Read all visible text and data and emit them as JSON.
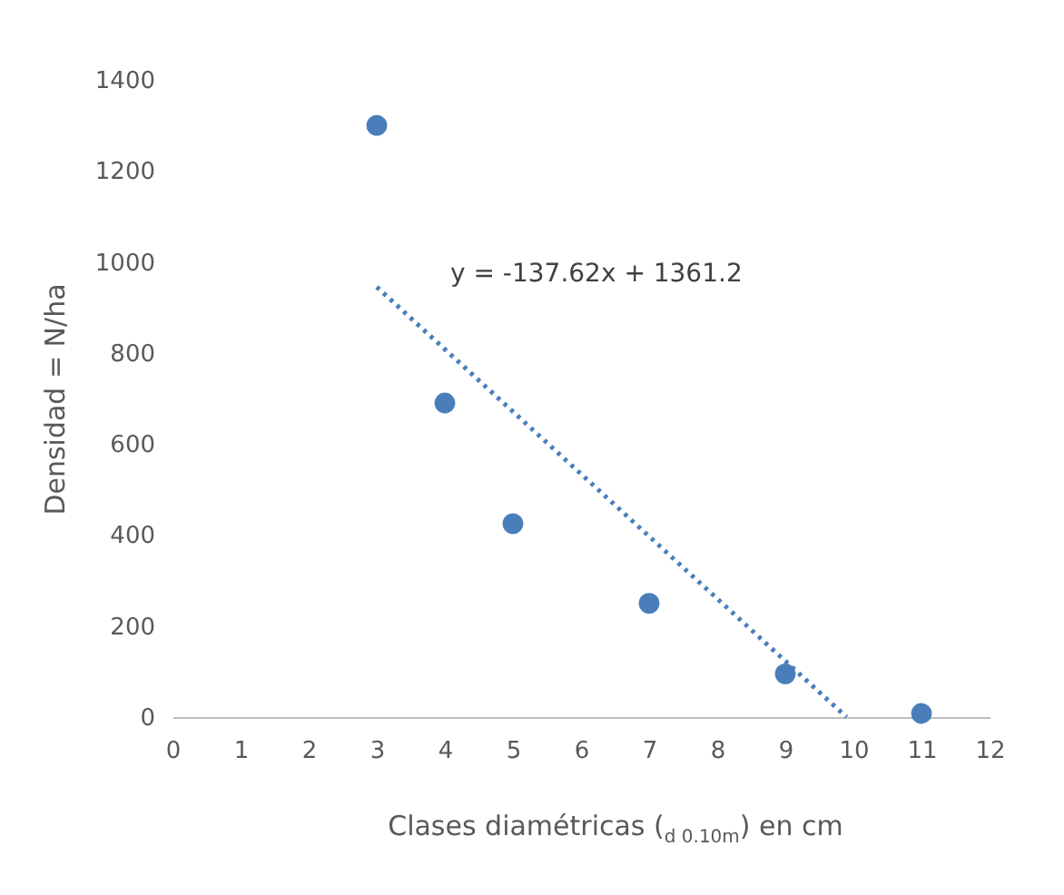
{
  "chart_data": {
    "type": "scatter",
    "xlabel": "Clases diamétricas ($_{d 0.10m}$) en cm",
    "ylabel": "Densidad = N/ha",
    "xlim": [
      0,
      12
    ],
    "xticks": [
      0,
      1,
      2,
      3,
      4,
      5,
      6,
      7,
      8,
      9,
      10,
      11,
      12
    ],
    "ylim": [
      0,
      1400
    ],
    "yticks": [
      0,
      200,
      400,
      600,
      800,
      1000,
      1200,
      1400
    ],
    "grid": false,
    "series": [
      {
        "marker": "circle",
        "color": "#4a7ebb",
        "x": [
          3,
          4,
          5,
          7,
          9,
          11
        ],
        "values": [
          1300,
          690,
          425,
          250,
          95,
          8
        ]
      },
      {
        "type": "line",
        "line_style": "dotted",
        "color": "#4a7ebb",
        "x": [
          3,
          9.9
        ],
        "values": [
          945,
          0
        ]
      }
    ],
    "annotations": [
      "y = -137.62x + 1361.2"
    ]
  }
}
